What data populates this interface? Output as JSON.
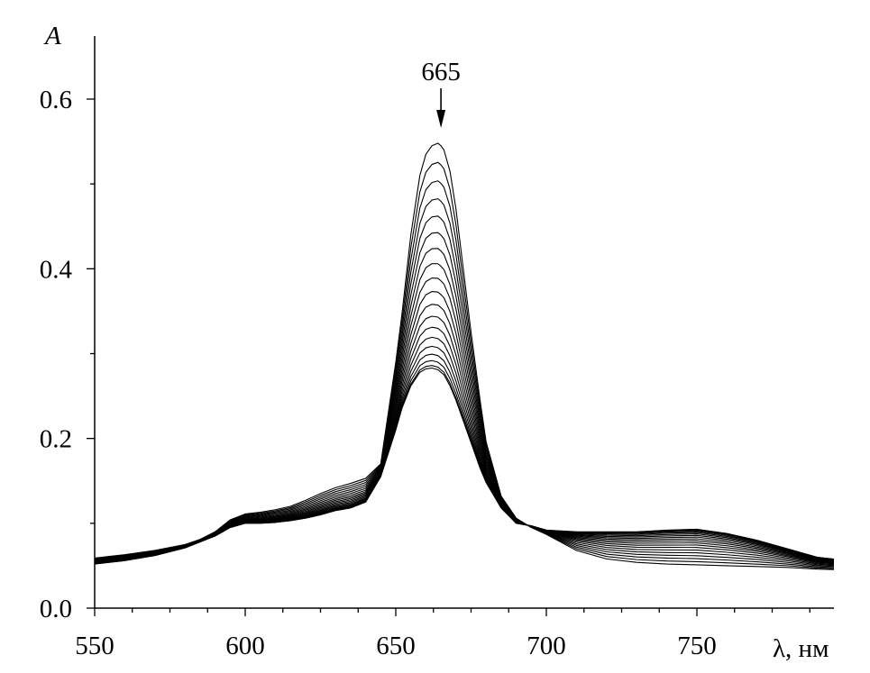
{
  "chart_data": {
    "type": "line",
    "title": "",
    "xlabel": "λ, нм",
    "ylabel": "A",
    "xlim": [
      550,
      800
    ],
    "ylim": [
      0,
      0.67
    ],
    "x_ticks": [
      550,
      600,
      650,
      700,
      750
    ],
    "x_tick_labels": [
      "550",
      "600",
      "650",
      "700",
      "750"
    ],
    "y_ticks": [
      0.0,
      0.2,
      0.4,
      0.6
    ],
    "y_tick_labels": [
      "0.0",
      "0.2",
      "0.4",
      "0.6"
    ],
    "grid": false,
    "legend": "none",
    "line_color": "#000000",
    "x": [
      550,
      560,
      570,
      580,
      585,
      590,
      595,
      600,
      605,
      610,
      615,
      620,
      625,
      630,
      635,
      640,
      645,
      650,
      652,
      655,
      658,
      660,
      662,
      664,
      665,
      666,
      668,
      670,
      672,
      675,
      678,
      680,
      685,
      690,
      695,
      700,
      710,
      720,
      730,
      740,
      750,
      760,
      770,
      780,
      790,
      800
    ],
    "series": [
      {
        "values": [
          0.052,
          0.056,
          0.062,
          0.071,
          0.078,
          0.085,
          0.095,
          0.1,
          0.1,
          0.101,
          0.103,
          0.106,
          0.11,
          0.115,
          0.118,
          0.125,
          0.155,
          0.21,
          0.235,
          0.262,
          0.278,
          0.282,
          0.283,
          0.281,
          0.278,
          0.275,
          0.262,
          0.245,
          0.225,
          0.195,
          0.165,
          0.148,
          0.118,
          0.1,
          0.097,
          0.092,
          0.09,
          0.09,
          0.09,
          0.092,
          0.093,
          0.088,
          0.08,
          0.07,
          0.06,
          0.056
        ]
      },
      {
        "values": [
          0.055,
          0.059,
          0.065,
          0.073,
          0.08,
          0.088,
          0.1,
          0.105,
          0.106,
          0.108,
          0.111,
          0.116,
          0.122,
          0.128,
          0.132,
          0.138,
          0.162,
          0.25,
          0.29,
          0.35,
          0.395,
          0.41,
          0.415,
          0.415,
          0.412,
          0.408,
          0.39,
          0.36,
          0.32,
          0.26,
          0.205,
          0.172,
          0.125,
          0.103,
          0.096,
          0.09,
          0.08,
          0.075,
          0.073,
          0.073,
          0.073,
          0.07,
          0.066,
          0.06,
          0.054,
          0.052
        ]
      },
      {
        "values": [
          0.059,
          0.063,
          0.068,
          0.075,
          0.081,
          0.09,
          0.104,
          0.111,
          0.113,
          0.116,
          0.12,
          0.127,
          0.135,
          0.142,
          0.147,
          0.153,
          0.17,
          0.29,
          0.345,
          0.44,
          0.51,
          0.535,
          0.545,
          0.548,
          0.545,
          0.54,
          0.515,
          0.47,
          0.412,
          0.325,
          0.245,
          0.196,
          0.132,
          0.106,
          0.095,
          0.087,
          0.068,
          0.058,
          0.054,
          0.052,
          0.051,
          0.05,
          0.049,
          0.048,
          0.046,
          0.045
        ]
      }
    ],
    "intermediate_curves": 17,
    "annotations": [
      {
        "text": "665",
        "x": 665,
        "y": 0.6,
        "type": "arrow-down"
      }
    ]
  }
}
